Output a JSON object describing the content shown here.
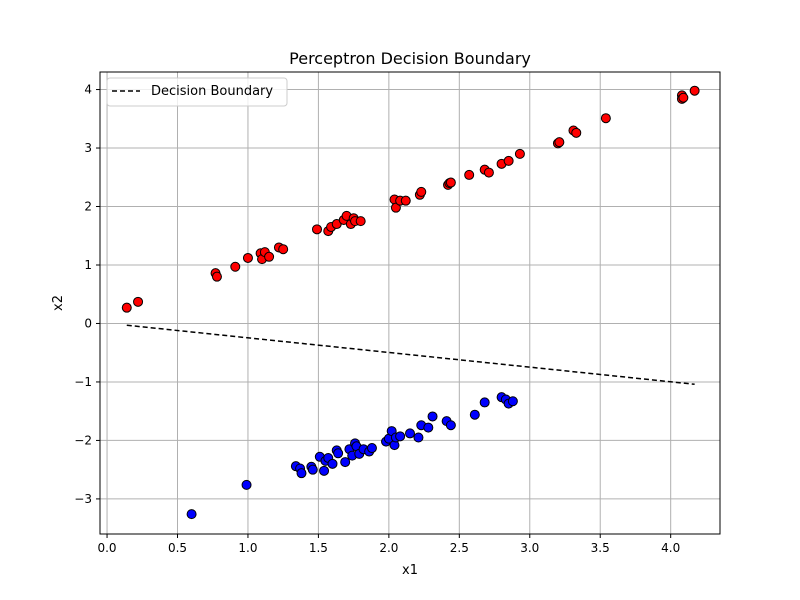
{
  "chart_data": {
    "type": "scatter",
    "title": "Perceptron Decision Boundary",
    "xlabel": "x1",
    "ylabel": "x2",
    "xlim": [
      -0.05,
      4.35
    ],
    "ylim": [
      -3.6,
      4.3
    ],
    "xticks": [
      0.0,
      0.5,
      1.0,
      1.5,
      2.0,
      2.5,
      3.0,
      3.5,
      4.0
    ],
    "xtick_labels": [
      "0.0",
      "0.5",
      "1.0",
      "1.5",
      "2.0",
      "2.5",
      "3.0",
      "3.5",
      "4.0"
    ],
    "yticks": [
      -3,
      -2,
      -1,
      0,
      1,
      2,
      3,
      4
    ],
    "ytick_labels": [
      "−3",
      "−2",
      "−1",
      "0",
      "1",
      "2",
      "3",
      "4"
    ],
    "grid": true,
    "legend": {
      "placement": "upper-left",
      "entries": [
        "Decision Boundary"
      ]
    },
    "boundary": {
      "name": "Decision Boundary",
      "color": "#000000",
      "style": "dashed",
      "x": [
        0.14,
        4.17
      ],
      "y": [
        -0.03,
        -1.04
      ]
    },
    "series": [
      {
        "color": "#ff0000",
        "points": [
          [
            0.14,
            0.27
          ],
          [
            0.22,
            0.37
          ],
          [
            0.77,
            0.86
          ],
          [
            0.78,
            0.8
          ],
          [
            0.91,
            0.97
          ],
          [
            1.0,
            1.12
          ],
          [
            1.09,
            1.2
          ],
          [
            1.1,
            1.1
          ],
          [
            1.12,
            1.22
          ],
          [
            1.15,
            1.14
          ],
          [
            1.22,
            1.3
          ],
          [
            1.25,
            1.27
          ],
          [
            1.49,
            1.61
          ],
          [
            1.57,
            1.58
          ],
          [
            1.59,
            1.65
          ],
          [
            1.63,
            1.7
          ],
          [
            1.68,
            1.77
          ],
          [
            1.7,
            1.84
          ],
          [
            1.73,
            1.7
          ],
          [
            1.75,
            1.8
          ],
          [
            1.76,
            1.75
          ],
          [
            1.8,
            1.75
          ],
          [
            2.04,
            2.12
          ],
          [
            2.05,
            1.98
          ],
          [
            2.08,
            2.1
          ],
          [
            2.12,
            2.1
          ],
          [
            2.22,
            2.2
          ],
          [
            2.23,
            2.25
          ],
          [
            2.42,
            2.37
          ],
          [
            2.43,
            2.4
          ],
          [
            2.44,
            2.41
          ],
          [
            2.57,
            2.54
          ],
          [
            2.68,
            2.63
          ],
          [
            2.71,
            2.58
          ],
          [
            2.8,
            2.73
          ],
          [
            2.85,
            2.78
          ],
          [
            2.93,
            2.9
          ],
          [
            3.2,
            3.08
          ],
          [
            3.21,
            3.1
          ],
          [
            3.31,
            3.3
          ],
          [
            3.33,
            3.26
          ],
          [
            3.54,
            3.51
          ],
          [
            4.08,
            3.9
          ],
          [
            4.08,
            3.84
          ],
          [
            4.09,
            3.86
          ],
          [
            4.17,
            3.98
          ]
        ]
      },
      {
        "color": "#0000ff",
        "points": [
          [
            0.6,
            -3.26
          ],
          [
            0.99,
            -2.76
          ],
          [
            1.34,
            -2.44
          ],
          [
            1.37,
            -2.48
          ],
          [
            1.38,
            -2.56
          ],
          [
            1.45,
            -2.45
          ],
          [
            1.46,
            -2.5
          ],
          [
            1.51,
            -2.28
          ],
          [
            1.54,
            -2.52
          ],
          [
            1.55,
            -2.35
          ],
          [
            1.57,
            -2.3
          ],
          [
            1.6,
            -2.4
          ],
          [
            1.63,
            -2.17
          ],
          [
            1.64,
            -2.22
          ],
          [
            1.69,
            -2.37
          ],
          [
            1.72,
            -2.15
          ],
          [
            1.74,
            -2.26
          ],
          [
            1.76,
            -2.05
          ],
          [
            1.77,
            -2.1
          ],
          [
            1.79,
            -2.23
          ],
          [
            1.82,
            -2.15
          ],
          [
            1.86,
            -2.19
          ],
          [
            1.88,
            -2.13
          ],
          [
            1.98,
            -2.02
          ],
          [
            2.0,
            -1.97
          ],
          [
            2.02,
            -1.84
          ],
          [
            2.04,
            -2.08
          ],
          [
            2.05,
            -1.95
          ],
          [
            2.08,
            -1.93
          ],
          [
            2.15,
            -1.88
          ],
          [
            2.21,
            -1.95
          ],
          [
            2.23,
            -1.74
          ],
          [
            2.28,
            -1.78
          ],
          [
            2.31,
            -1.59
          ],
          [
            2.41,
            -1.67
          ],
          [
            2.44,
            -1.74
          ],
          [
            2.61,
            -1.56
          ],
          [
            2.68,
            -1.35
          ],
          [
            2.8,
            -1.26
          ],
          [
            2.83,
            -1.3
          ],
          [
            2.85,
            -1.37
          ],
          [
            2.88,
            -1.33
          ]
        ]
      }
    ]
  }
}
